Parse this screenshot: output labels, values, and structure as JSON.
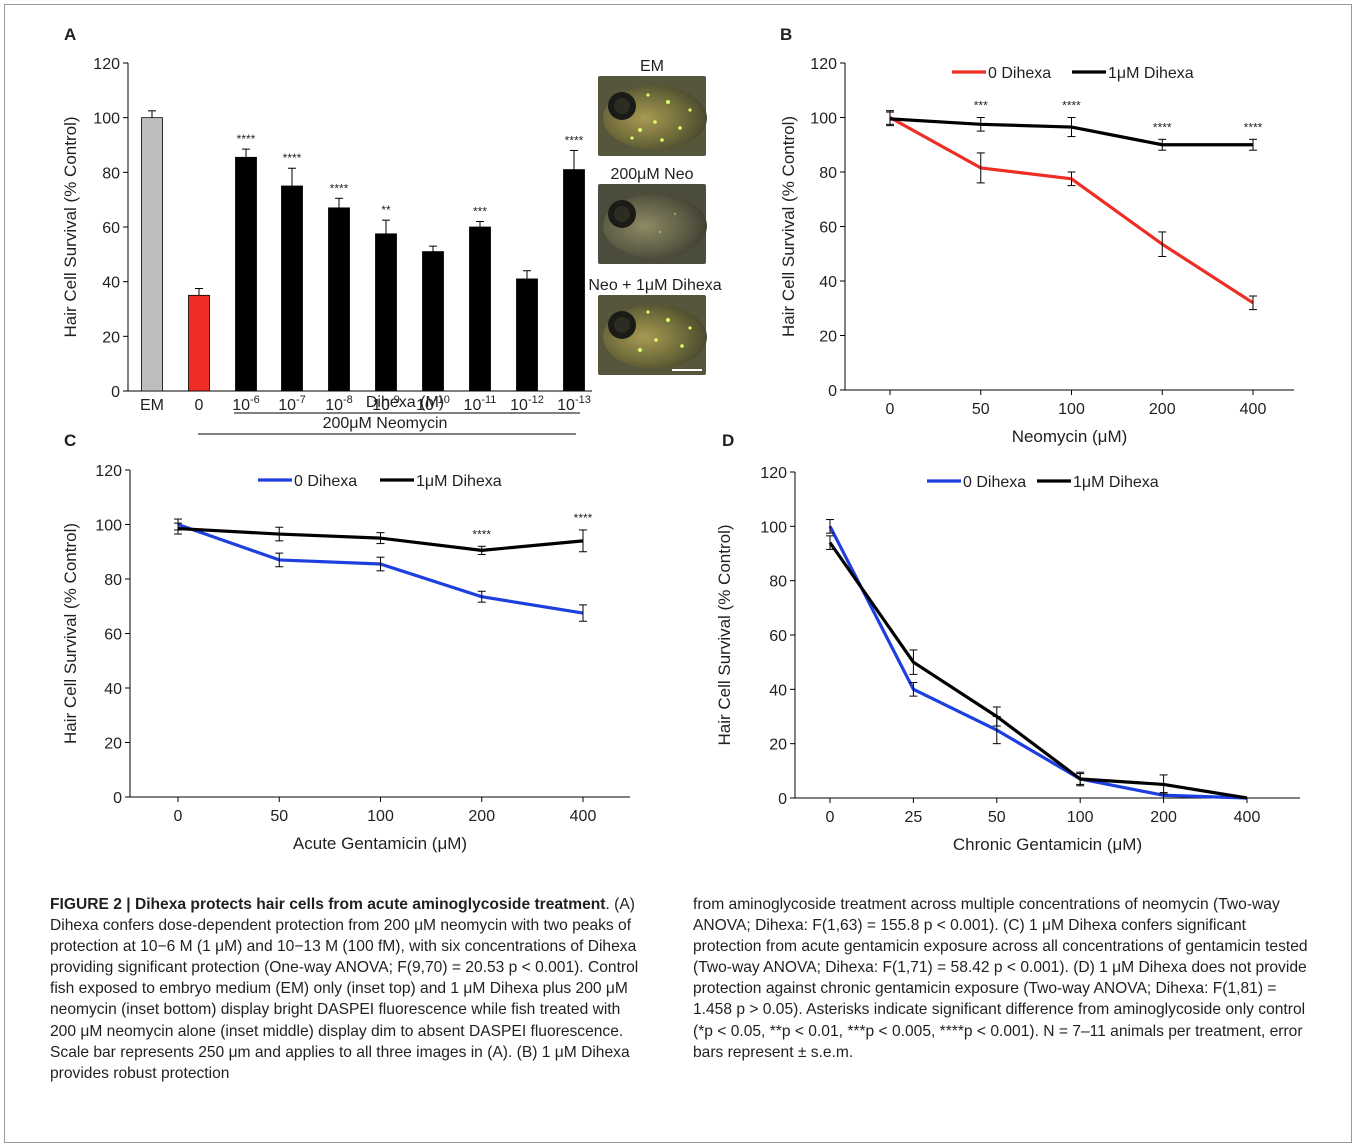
{
  "panels": {
    "A": {
      "letter": "A",
      "ylabel": "Hair Cell Survival (% Control)",
      "yticks": [
        "0",
        "20",
        "40",
        "60",
        "80",
        "100",
        "120"
      ],
      "categories": [
        "EM",
        "0",
        "10",
        "10",
        "10",
        "10",
        "10",
        "10",
        "10",
        "10"
      ],
      "exponents": [
        "",
        "",
        "-6",
        "-7",
        "-8",
        "-9",
        "-10",
        "-11",
        "-12",
        "-13"
      ],
      "values": [
        100,
        35,
        85.5,
        75,
        67,
        57.5,
        51,
        60,
        41,
        81
      ],
      "errors": [
        2.5,
        2.5,
        3,
        6.5,
        3.5,
        5,
        2,
        2,
        3,
        7
      ],
      "significance": [
        "",
        "",
        "****",
        "****",
        "****",
        "**",
        "",
        "***",
        "",
        "****"
      ],
      "colors": [
        "#bdbdbd",
        "#ee2e24",
        "#000000",
        "#000000",
        "#000000",
        "#000000",
        "#000000",
        "#000000",
        "#000000",
        "#000000"
      ],
      "group_label_inner": "Dihexa (M)",
      "group_label_outer": "200μM Neomycin",
      "insets": [
        "EM",
        "200μM Neo",
        "Neo + 1μM Dihexa"
      ]
    },
    "B": {
      "letter": "B",
      "ylabel": "Hair Cell Survival (% Control)",
      "xlabel": "Neomycin (μM)",
      "xticks": [
        "0",
        "50",
        "100",
        "200",
        "400"
      ],
      "yticks": [
        "0",
        "20",
        "40",
        "60",
        "80",
        "100",
        "120"
      ],
      "legend": [
        "0 Dihexa",
        "1μM Dihexa"
      ],
      "series_colors": [
        "#ee2e24",
        "#000000"
      ],
      "values": [
        [
          100,
          81.5,
          77.5,
          53.5,
          32
        ],
        [
          99.5,
          97.5,
          96.5,
          90,
          90
        ]
      ],
      "errors": [
        [
          2.5,
          5.5,
          2.5,
          4.5,
          2.5
        ],
        [
          2.5,
          2.5,
          3.5,
          2,
          2
        ]
      ],
      "significance": [
        "",
        "***",
        "****",
        "****",
        "****"
      ]
    },
    "C": {
      "letter": "C",
      "ylabel": "Hair Cell Survival (% Control)",
      "xlabel": "Acute Gentamicin (μM)",
      "xticks": [
        "0",
        "50",
        "100",
        "200",
        "400"
      ],
      "yticks": [
        "0",
        "20",
        "40",
        "60",
        "80",
        "100",
        "120"
      ],
      "legend": [
        "0 Dihexa",
        "1μM Dihexa"
      ],
      "series_colors": [
        "#1d3fe0",
        "#000000"
      ],
      "values": [
        [
          100,
          87,
          85.5,
          73.5,
          67.5
        ],
        [
          98.5,
          96.5,
          95,
          90.5,
          94
        ]
      ],
      "errors": [
        [
          2,
          2.5,
          2.5,
          2,
          3
        ],
        [
          2,
          2.5,
          2,
          1.5,
          4
        ]
      ],
      "significance": [
        "",
        "",
        "",
        "****",
        "****"
      ]
    },
    "D": {
      "letter": "D",
      "ylabel": "Hair Cell Survival (% Control)",
      "xlabel": "Chronic Gentamicin (μM)",
      "xticks": [
        "0",
        "25",
        "50",
        "100",
        "200",
        "400"
      ],
      "yticks": [
        "0",
        "20",
        "40",
        "60",
        "80",
        "100",
        "120"
      ],
      "legend": [
        "0 Dihexa",
        "1μM Dihexa"
      ],
      "series_colors": [
        "#1d3fe0",
        "#000000"
      ],
      "values": [
        [
          100,
          40,
          25,
          7,
          1,
          0
        ],
        [
          94,
          50,
          30,
          7,
          5,
          0
        ]
      ],
      "errors": [
        [
          2.5,
          2.5,
          5,
          2,
          1,
          0
        ],
        [
          2.5,
          4.5,
          3.5,
          2.5,
          3.5,
          0
        ]
      ],
      "significance": [
        "",
        "",
        "",
        "",
        "",
        ""
      ]
    }
  },
  "caption": {
    "label": "FIGURE 2 | Dihexa protects hair cells from acute aminoglycoside treatment",
    "left_text": ". (A) Dihexa confers dose-dependent protection from 200 μM neomycin with two peaks of protection at 10−6 M (1 μM) and 10−13 M (100 fM), with six concentrations of Dihexa providing significant protection (One-way ANOVA; F(9,70) = 20.53 p < 0.001). Control fish exposed to embryo medium (EM) only (inset top) and 1 μM Dihexa plus 200 μM neomycin (inset bottom) display bright DASPEI fluorescence while fish treated with 200 μM neomycin alone (inset middle) display dim to absent DASPEI fluorescence. Scale bar represents 250 μm and applies to all three images in (A). (B) 1 μM Dihexa provides robust protection",
    "right_text": "from aminoglycoside treatment across multiple concentrations of neomycin (Two-way ANOVA; Dihexa: F(1,63) = 155.8 p < 0.001). (C) 1 μM Dihexa confers significant protection from acute gentamicin exposure across all concentrations of gentamicin tested (Two-way ANOVA; Dihexa: F(1,71) = 58.42 p < 0.001). (D) 1 μM Dihexa does not provide protection against chronic gentamicin exposure (Two-way ANOVA; Dihexa: F(1,81) = 1.458 p > 0.05). Asterisks indicate significant difference from aminoglycoside only control (*p < 0.05, **p < 0.01, ***p < 0.005, ****p < 0.001). N = 7–11 animals per treatment, error bars represent ± s.e.m."
  },
  "chart_data": [
    {
      "type": "bar",
      "panel": "A",
      "categories": [
        "EM",
        "0",
        "10-6",
        "10-7",
        "10-8",
        "10-9",
        "10-10",
        "10-11",
        "10-12",
        "10-13"
      ],
      "values": [
        100,
        35,
        85.5,
        75,
        67,
        57.5,
        51,
        60,
        41,
        81
      ],
      "errors": [
        2.5,
        2.5,
        3,
        6.5,
        3.5,
        5,
        2,
        2,
        3,
        7
      ],
      "ylabel": "Hair Cell Survival (% Control)",
      "xlabel": "Dihexa (M)",
      "ylim": [
        0,
        120
      ]
    },
    {
      "type": "line",
      "panel": "B",
      "x": [
        "0",
        "50",
        "100",
        "200",
        "400"
      ],
      "series": [
        {
          "name": "0 Dihexa",
          "values": [
            100,
            81.5,
            77.5,
            53.5,
            32
          ]
        },
        {
          "name": "1μM Dihexa",
          "values": [
            99.5,
            97.5,
            96.5,
            90,
            90
          ]
        }
      ],
      "xlabel": "Neomycin (μM)",
      "ylabel": "Hair Cell Survival (% Control)",
      "ylim": [
        0,
        120
      ],
      "legend": "top"
    },
    {
      "type": "line",
      "panel": "C",
      "x": [
        "0",
        "50",
        "100",
        "200",
        "400"
      ],
      "series": [
        {
          "name": "0 Dihexa",
          "values": [
            100,
            87,
            85.5,
            73.5,
            67.5
          ]
        },
        {
          "name": "1μM Dihexa",
          "values": [
            98.5,
            96.5,
            95,
            90.5,
            94
          ]
        }
      ],
      "xlabel": "Acute Gentamicin (μM)",
      "ylabel": "Hair Cell Survival (% Control)",
      "ylim": [
        0,
        120
      ],
      "legend": "top"
    },
    {
      "type": "line",
      "panel": "D",
      "x": [
        "0",
        "25",
        "50",
        "100",
        "200",
        "400"
      ],
      "series": [
        {
          "name": "0 Dihexa",
          "values": [
            100,
            40,
            25,
            7,
            1,
            0
          ]
        },
        {
          "name": "1μM Dihexa",
          "values": [
            94,
            50,
            30,
            7,
            5,
            0
          ]
        }
      ],
      "xlabel": "Chronic Gentamicin (μM)",
      "ylabel": "Hair Cell Survival (% Control)",
      "ylim": [
        0,
        120
      ],
      "legend": "top"
    }
  ]
}
